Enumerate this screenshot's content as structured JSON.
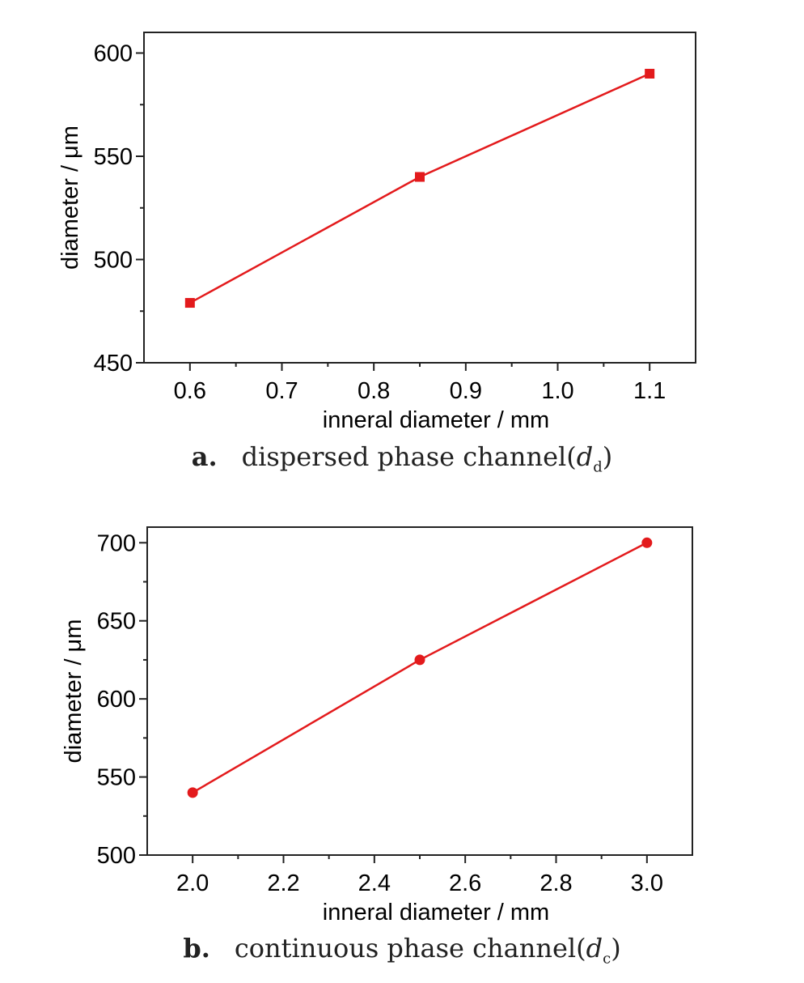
{
  "chart_data": [
    {
      "type": "line",
      "caption_letter": "a.",
      "caption_text": "dispersed phase channel(",
      "caption_var": "d",
      "caption_sub": "d",
      "caption_close": ")",
      "xlabel": "inneral diameter  / mm",
      "ylabel": "diameter / μm",
      "xlim": [
        0.55,
        1.15
      ],
      "ylim": [
        450,
        610
      ],
      "xticks": [
        0.6,
        0.7,
        0.8,
        0.9,
        1.0,
        1.1
      ],
      "xtick_labels": [
        "0.6",
        "0.7",
        "0.8",
        "0.9",
        "1.0",
        "1.1"
      ],
      "yticks": [
        450,
        500,
        550,
        600
      ],
      "ytick_labels": [
        "450",
        "500",
        "550",
        "600"
      ],
      "marker": "square",
      "color": "#e31a1c",
      "grid": false,
      "series": [
        {
          "x": [
            0.6,
            0.85,
            1.1
          ],
          "y": [
            479,
            540,
            590
          ]
        }
      ]
    },
    {
      "type": "line",
      "caption_letter": "b.",
      "caption_text": "continuous phase channel(",
      "caption_var": "d",
      "caption_sub": "c",
      "caption_close": ")",
      "xlabel": "inneral diameter / mm",
      "ylabel": "diameter / μm",
      "xlim": [
        1.9,
        3.1
      ],
      "ylim": [
        500,
        710
      ],
      "xticks": [
        2.0,
        2.2,
        2.4,
        2.6,
        2.8,
        3.0
      ],
      "xtick_labels": [
        "2.0",
        "2.2",
        "2.4",
        "2.6",
        "2.8",
        "3.0"
      ],
      "yticks": [
        500,
        550,
        600,
        650,
        700
      ],
      "ytick_labels": [
        "500",
        "550",
        "600",
        "650",
        "700"
      ],
      "marker": "circle",
      "color": "#e31a1c",
      "grid": false,
      "series": [
        {
          "x": [
            2.0,
            2.5,
            3.0
          ],
          "y": [
            540,
            625,
            700
          ]
        }
      ]
    }
  ]
}
